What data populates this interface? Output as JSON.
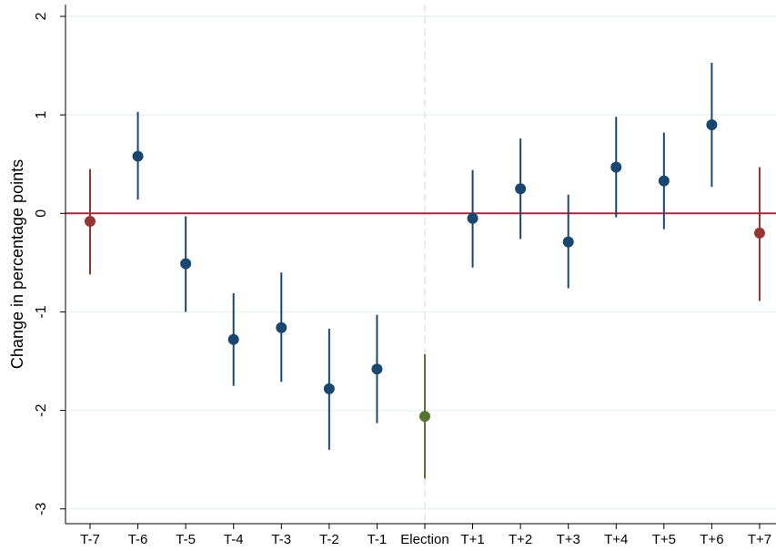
{
  "chart_data": {
    "type": "errorbar",
    "y_label": "Change in percentage points",
    "categories": [
      "T-7",
      "T-6",
      "T-5",
      "T-4",
      "T-3",
      "T-2",
      "T-1",
      "Election",
      "T+1",
      "T+2",
      "T+3",
      "T+4",
      "T+5",
      "T+6",
      "T+7"
    ],
    "values": [
      -0.08,
      0.58,
      -0.51,
      -1.28,
      -1.16,
      -1.78,
      -1.58,
      -2.06,
      -0.05,
      0.25,
      -0.29,
      0.47,
      0.33,
      0.9,
      -0.2
    ],
    "lower": [
      -0.62,
      0.14,
      -1.0,
      -1.75,
      -1.71,
      -2.4,
      -2.13,
      -2.69,
      -0.55,
      -0.26,
      -0.76,
      -0.04,
      -0.16,
      0.27,
      -0.89
    ],
    "upper": [
      0.45,
      1.03,
      -0.03,
      -0.81,
      -0.6,
      -1.17,
      -1.03,
      -1.43,
      0.44,
      0.76,
      0.19,
      0.98,
      0.82,
      1.53,
      0.47
    ],
    "colors": [
      "#953534",
      "#1a476f",
      "#1a476f",
      "#1a476f",
      "#1a476f",
      "#1a476f",
      "#1a476f",
      "#55752f",
      "#1a476f",
      "#1a476f",
      "#1a476f",
      "#1a476f",
      "#1a476f",
      "#1a476f",
      "#953534"
    ],
    "ylim": [
      -3.15,
      2.12
    ],
    "yticks": [
      -3,
      -2,
      -1,
      0,
      1,
      2
    ],
    "grid": true,
    "reference_line": 0,
    "reference_color": "#b5243f",
    "vline_category": "Election"
  }
}
